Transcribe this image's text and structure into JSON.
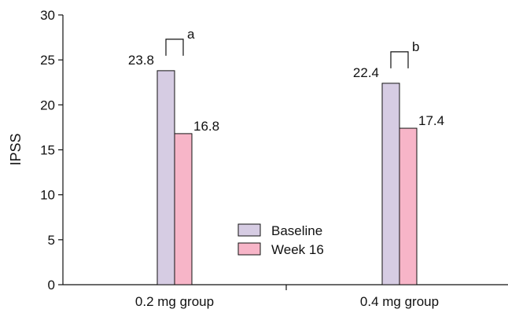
{
  "chart_data": {
    "type": "bar",
    "title": "",
    "xlabel": "",
    "ylabel": "IPSS",
    "ylim": [
      0,
      30
    ],
    "yticks": [
      0,
      5,
      10,
      15,
      20,
      25,
      30
    ],
    "grid": false,
    "legend_position": "center",
    "categories": [
      "0.2 mg group",
      "0.4 mg group"
    ],
    "series": [
      {
        "name": "Baseline",
        "values": [
          23.8,
          22.4
        ],
        "labels": [
          "23.8",
          "22.4"
        ],
        "color": "#d6cce3"
      },
      {
        "name": "Week 16",
        "values": [
          16.8,
          17.4
        ],
        "labels": [
          "16.8",
          "17.4"
        ],
        "color": "#f7b5c8"
      }
    ],
    "significance": [
      "a",
      "b"
    ]
  }
}
